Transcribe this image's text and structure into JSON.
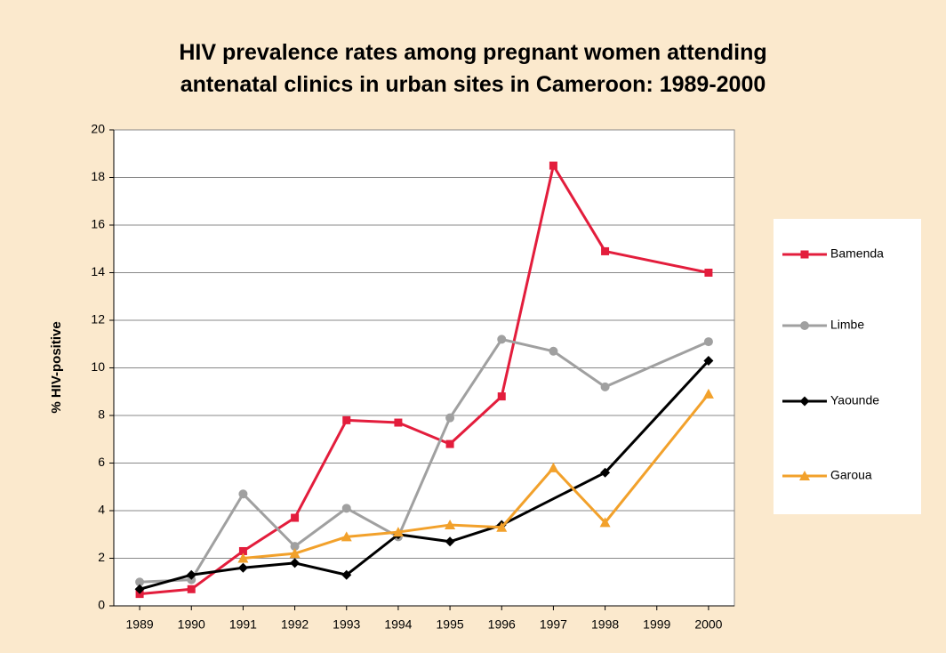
{
  "chart_data": {
    "type": "line",
    "title": "HIV prevalence rates among pregnant women attending antenatal clinics in urban sites in Cameroon: 1989-2000",
    "y_label": "% HIV-positive",
    "xlim": [
      1988.5,
      2000.5
    ],
    "xticks": [
      1989,
      1990,
      1991,
      1992,
      1993,
      1994,
      1995,
      1996,
      1997,
      1998,
      1999,
      2000
    ],
    "ylim": [
      0,
      20
    ],
    "yticks": [
      0,
      2,
      4,
      6,
      8,
      10,
      12,
      14,
      16,
      18,
      20
    ],
    "grid": true,
    "legend": "right",
    "series": [
      {
        "name": "Bamenda",
        "color": "#e31d3c",
        "marker": "square",
        "x": [
          1989,
          1990,
          1991,
          1992,
          1993,
          1994,
          1995,
          1996,
          1997,
          1998,
          2000
        ],
        "values": [
          0.5,
          0.7,
          2.3,
          3.7,
          7.8,
          7.7,
          6.8,
          8.8,
          18.5,
          14.9,
          14.0
        ]
      },
      {
        "name": "Limbe",
        "color": "#a0a0a0",
        "marker": "circle",
        "x": [
          1989,
          1990,
          1991,
          1992,
          1993,
          1994,
          1995,
          1996,
          1997,
          1998,
          2000
        ],
        "values": [
          1.0,
          1.1,
          4.7,
          2.5,
          4.1,
          2.9,
          7.9,
          11.2,
          10.7,
          9.2,
          11.1
        ]
      },
      {
        "name": "Yaounde",
        "color": "#000000",
        "marker": "diamond",
        "x": [
          1989,
          1990,
          1991,
          1992,
          1993,
          1994,
          1995,
          1996,
          1998,
          2000
        ],
        "values": [
          0.7,
          1.3,
          1.6,
          1.8,
          1.3,
          3.0,
          2.7,
          3.4,
          5.6,
          10.3
        ]
      },
      {
        "name": "Garoua",
        "color": "#f2a12b",
        "marker": "triangle",
        "x": [
          1991,
          1992,
          1993,
          1994,
          1995,
          1996,
          1997,
          1998,
          2000
        ],
        "values": [
          2.0,
          2.2,
          2.9,
          3.1,
          3.4,
          3.3,
          5.8,
          3.5,
          8.9
        ]
      }
    ]
  }
}
